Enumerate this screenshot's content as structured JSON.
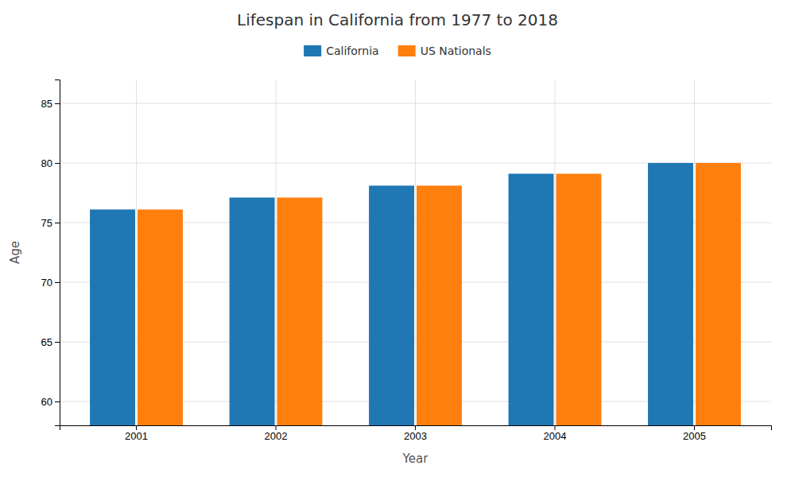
{
  "chart_data": {
    "type": "bar",
    "title": "Lifespan in California from 1977 to 2018",
    "xlabel": "Year",
    "ylabel": "Age",
    "categories": [
      "2001",
      "2002",
      "2003",
      "2004",
      "2005"
    ],
    "series": [
      {
        "name": "California",
        "values": [
          76.1,
          77.1,
          78.1,
          79.1,
          80.0
        ]
      },
      {
        "name": "US Nationals",
        "values": [
          76.1,
          77.1,
          78.1,
          79.1,
          80.0
        ]
      }
    ],
    "ylim": [
      58,
      87
    ],
    "yticks": [
      60,
      65,
      70,
      75,
      80,
      85
    ],
    "grid": true,
    "legend": "top"
  }
}
